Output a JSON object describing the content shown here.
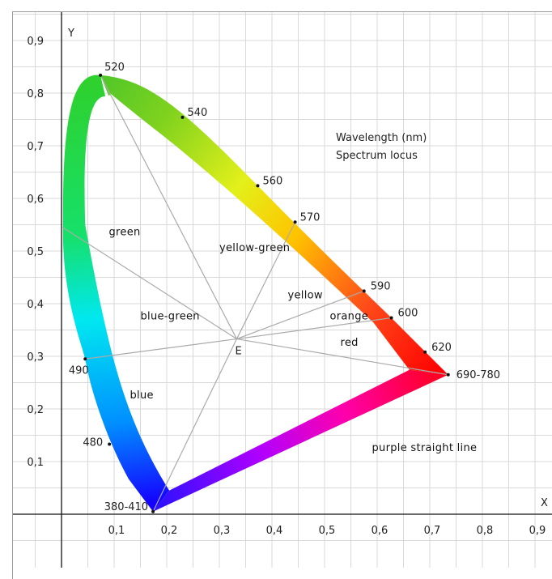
{
  "chart_data": {
    "type": "scatter",
    "axes": {
      "x_label": "X",
      "y_label": "Y",
      "xlim": [
        0,
        0.9
      ],
      "ylim": [
        0,
        0.9
      ],
      "x_ticks": [
        "0,1",
        "0,2",
        "0,3",
        "0,4",
        "0,5",
        "0,6",
        "0,7",
        "0,8",
        "0,9"
      ],
      "y_ticks": [
        "0,1",
        "0,2",
        "0,3",
        "0,4",
        "0,5",
        "0,6",
        "0,7",
        "0,8",
        "0,9"
      ],
      "grid": true
    },
    "legend_text": [
      "Wavelength (nm)",
      "Spectrum locus"
    ],
    "wavelength_points": [
      {
        "label": "520",
        "x": 0.074,
        "y": 0.834
      },
      {
        "label": "540",
        "x": 0.23,
        "y": 0.754
      },
      {
        "label": "560",
        "x": 0.373,
        "y": 0.624
      },
      {
        "label": "570",
        "x": 0.444,
        "y": 0.555
      },
      {
        "label": "590",
        "x": 0.575,
        "y": 0.424
      },
      {
        "label": "600",
        "x": 0.627,
        "y": 0.373
      },
      {
        "label": "620",
        "x": 0.691,
        "y": 0.308
      },
      {
        "label": "690-780",
        "x": 0.735,
        "y": 0.265
      },
      {
        "label": "490",
        "x": 0.045,
        "y": 0.295
      },
      {
        "label": "480",
        "x": 0.091,
        "y": 0.133
      },
      {
        "label": "380-410",
        "x": 0.174,
        "y": 0.005
      }
    ],
    "white_point": {
      "label": "E",
      "x": 0.333,
      "y": 0.333
    },
    "regions": [
      {
        "label": "green",
        "x": 0.09,
        "y": 0.53
      },
      {
        "label": "yellow-green",
        "x": 0.3,
        "y": 0.5
      },
      {
        "label": "yellow",
        "x": 0.43,
        "y": 0.41
      },
      {
        "label": "orange",
        "x": 0.51,
        "y": 0.37
      },
      {
        "label": "blue-green",
        "x": 0.15,
        "y": 0.37
      },
      {
        "label": "red",
        "x": 0.53,
        "y": 0.32
      },
      {
        "label": "blue",
        "x": 0.13,
        "y": 0.22
      },
      {
        "label": "purple straight line",
        "x": 0.59,
        "y": 0.12
      }
    ]
  }
}
